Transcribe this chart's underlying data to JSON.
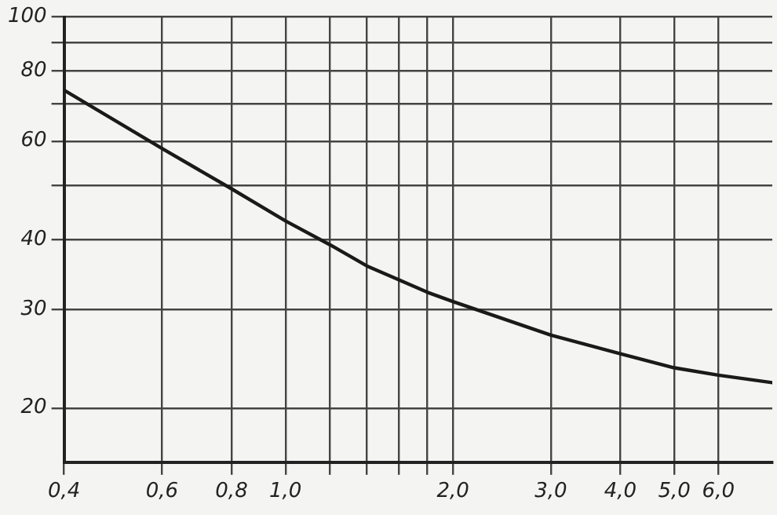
{
  "chart_data": {
    "type": "line",
    "log": "xy",
    "grid": true,
    "legend": false,
    "xlim": [
      0.4,
      7.5
    ],
    "ylim": [
      16,
      100
    ],
    "xticks": [
      {
        "value": 0.4,
        "label": "0,4"
      },
      {
        "value": 0.6,
        "label": "0,6"
      },
      {
        "value": 0.8,
        "label": "0,8"
      },
      {
        "value": 1,
        "label": "1,0"
      },
      {
        "value": 1.2,
        "label": null
      },
      {
        "value": 1.4,
        "label": null
      },
      {
        "value": 1.6,
        "label": null
      },
      {
        "value": 1.8,
        "label": null
      },
      {
        "value": 2,
        "label": "2,0"
      },
      {
        "value": 3,
        "label": "3,0"
      },
      {
        "value": 4,
        "label": "4,0"
      },
      {
        "value": 5,
        "label": "5,0"
      },
      {
        "value": 6,
        "label": "6,0"
      }
    ],
    "yticks": [
      20,
      30,
      40,
      {
        "value": 50,
        "label": null
      },
      60,
      {
        "value": 70,
        "label": null
      },
      80,
      {
        "value": 90,
        "label": null
      },
      100
    ],
    "x": [
      0.4,
      0.6,
      0.8,
      1.0,
      1.2,
      1.4,
      1.6,
      1.8,
      2.0,
      3.0,
      4.0,
      5.0,
      6.0,
      7.5
    ],
    "series": [
      {
        "color": "#1a1a1a",
        "values": [
          74,
          58.2,
          49.3,
          43.2,
          39.2,
          35.9,
          33.9,
          32.2,
          31.0,
          27.0,
          25.0,
          23.6,
          22.9,
          22.2
        ]
      }
    ]
  }
}
